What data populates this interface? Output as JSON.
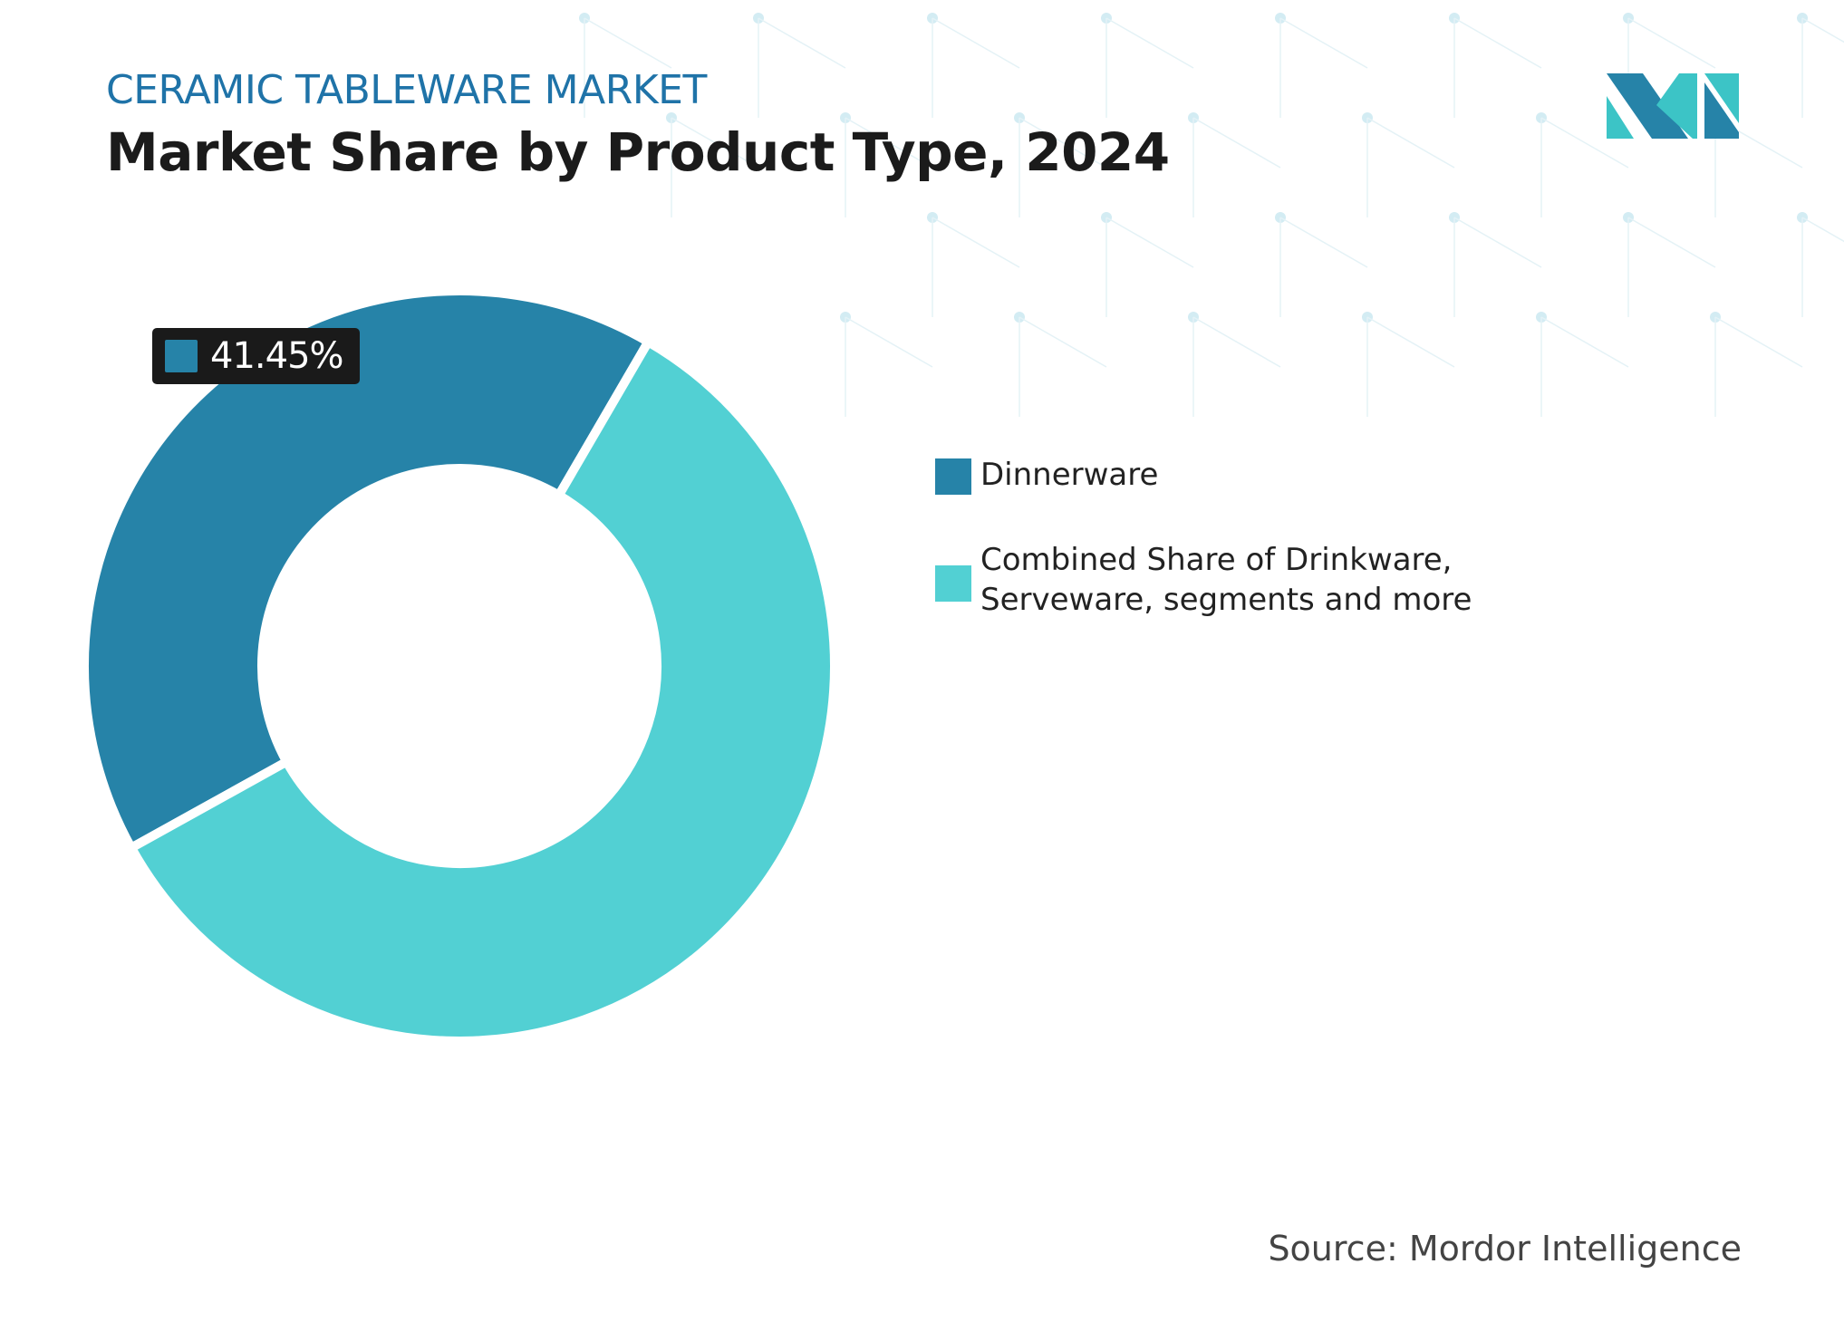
{
  "header": {
    "kicker": "CERAMIC TABLEWARE MARKET",
    "title": "Market Share by Product Type, 2024"
  },
  "chart_data": {
    "type": "pie",
    "donut": true,
    "title": "Market Share by Product Type, 2024",
    "series": [
      {
        "name": "Dinnerware",
        "value": 41.45,
        "color": "#2683a8"
      },
      {
        "name": "Combined Share of Drinkware, Serveware, segments and more",
        "value": 58.55,
        "color": "#52d0d3"
      }
    ],
    "data_labels": [
      {
        "series": "Dinnerware",
        "text": "41.45%"
      }
    ],
    "legend_placement": "right"
  },
  "source": "Source: Mordor Intelligence",
  "logo": {
    "text": "Mordor Intelligence",
    "colors": [
      "#2683a8",
      "#3cc4c6"
    ]
  }
}
